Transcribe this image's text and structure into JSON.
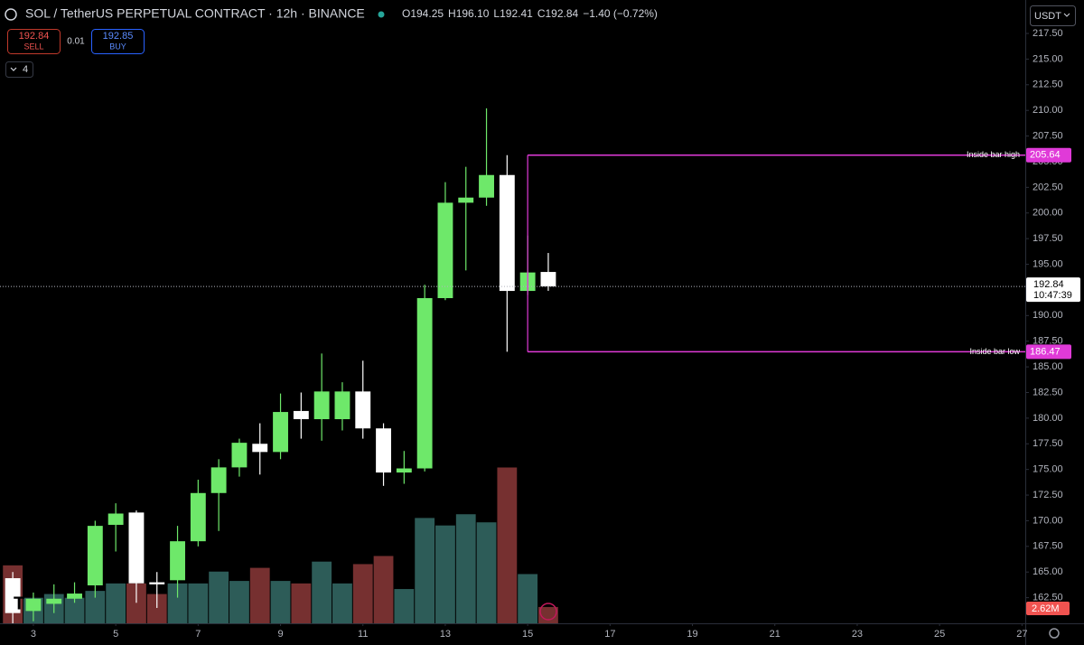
{
  "chart_data": {
    "type": "candlestick",
    "title": "SOL / TetherUS PERPETUAL CONTRACT · 12h · BINANCE",
    "ohlc_text": [
      "O194.25",
      "H196.10",
      "L192.41",
      "C192.84",
      "−1.40 (−0.72%)"
    ],
    "trade": {
      "sell_price": 192.84,
      "sell": "SELL",
      "spread": 0.01,
      "buy_price": 192.85,
      "buy": "BUY"
    },
    "indicator_count": 4,
    "currency": "USDT",
    "up_color": "#6ee86a",
    "down_color": "#ffffff",
    "volume_up_color": "#2d5c58",
    "volume_down_color": "#763030",
    "x": [
      2.5,
      3,
      3.5,
      4,
      4.5,
      5,
      5.5,
      6,
      6.5,
      7,
      7.5,
      8,
      8.5,
      9,
      9.5,
      10,
      10.5,
      11,
      11.5,
      12,
      12.5,
      13,
      13.5,
      14,
      14.5,
      15,
      15.5
    ],
    "open": [
      164.4,
      161.2,
      161.9,
      162.4,
      163.7,
      169.6,
      170.8,
      164.0,
      164.2,
      168.0,
      172.7,
      175.2,
      177.5,
      176.7,
      180.7,
      179.9,
      179.9,
      182.6,
      179.0,
      174.7,
      175.1,
      191.7,
      201.0,
      201.5,
      203.7,
      192.4,
      194.25
    ],
    "high": [
      165.0,
      163.0,
      163.8,
      164.0,
      170.0,
      171.7,
      171.0,
      165.0,
      169.5,
      174.0,
      176.0,
      178.0,
      179.5,
      182.4,
      182.5,
      186.3,
      183.5,
      185.6,
      179.5,
      176.8,
      193.0,
      203.0,
      204.5,
      210.2,
      205.64,
      197.8,
      196.1
    ],
    "low": [
      160.0,
      160.2,
      161.0,
      162.0,
      162.5,
      167.0,
      162.0,
      161.5,
      162.5,
      167.5,
      169.0,
      174.3,
      174.5,
      176.0,
      178.0,
      177.8,
      178.8,
      178.0,
      173.4,
      173.6,
      174.8,
      191.5,
      194.4,
      200.7,
      186.47,
      192.0,
      192.41
    ],
    "close": [
      161.0,
      162.4,
      162.4,
      162.9,
      169.5,
      170.7,
      163.9,
      163.8,
      168.0,
      172.7,
      175.2,
      177.6,
      176.7,
      180.6,
      179.9,
      182.6,
      182.6,
      179.0,
      174.7,
      175.1,
      191.7,
      201.0,
      201.5,
      203.7,
      192.4,
      194.2,
      192.84
    ],
    "volume": {
      "values": [
        9.3,
        4.1,
        4.7,
        4.1,
        5.2,
        6.4,
        6.4,
        4.7,
        6.4,
        6.4,
        8.3,
        6.8,
        8.9,
        6.8,
        6.4,
        9.9,
        6.4,
        9.5,
        10.8,
        5.5,
        16.9,
        15.7,
        17.5,
        16.2,
        25.0,
        7.9,
        2.62
      ],
      "last_label": "2.62M"
    },
    "vlim": [
      0,
      100
    ],
    "current_price": 192.84,
    "countdown": "10:47:39",
    "levels": [
      {
        "label": "Inside bar high",
        "value": 205.64,
        "color": "#e03ad8"
      },
      {
        "label": "Inside bar low",
        "value": 186.47,
        "color": "#e03ad8"
      }
    ],
    "xlim": [
      2.19,
      27.08
    ],
    "xticks": [
      3,
      5,
      7,
      9,
      11,
      13,
      15,
      17,
      19,
      21,
      23,
      25,
      27
    ],
    "ylim": [
      160.0,
      220.76
    ],
    "yticks": [
      {
        "value": 217.5,
        "label": "217.50"
      },
      {
        "value": 215,
        "label": "215.00"
      },
      {
        "value": 212.5,
        "label": "212.50"
      },
      {
        "value": 210,
        "label": "210.00"
      },
      {
        "value": 207.5,
        "label": "207.50"
      },
      {
        "value": 205,
        "label": "205.00"
      },
      {
        "value": 202.5,
        "label": "202.50"
      },
      {
        "value": 200,
        "label": "200.00"
      },
      {
        "value": 197.5,
        "label": "197.50"
      },
      {
        "value": 195,
        "label": "195.00"
      },
      {
        "value": 192.5,
        "label": "192.50"
      },
      {
        "value": 190,
        "label": "190.00"
      },
      {
        "value": 187.5,
        "label": "187.50"
      },
      {
        "value": 185,
        "label": "185.00"
      },
      {
        "value": 182.5,
        "label": "182.50"
      },
      {
        "value": 180,
        "label": "180.00"
      },
      {
        "value": 177.5,
        "label": "177.50"
      },
      {
        "value": 175,
        "label": "175.00"
      },
      {
        "value": 172.5,
        "label": "172.50"
      },
      {
        "value": 170,
        "label": "170.00"
      },
      {
        "value": 167.5,
        "label": "167.50"
      },
      {
        "value": 165,
        "label": "165.00"
      },
      {
        "value": 162.5,
        "label": "162.50"
      }
    ]
  }
}
